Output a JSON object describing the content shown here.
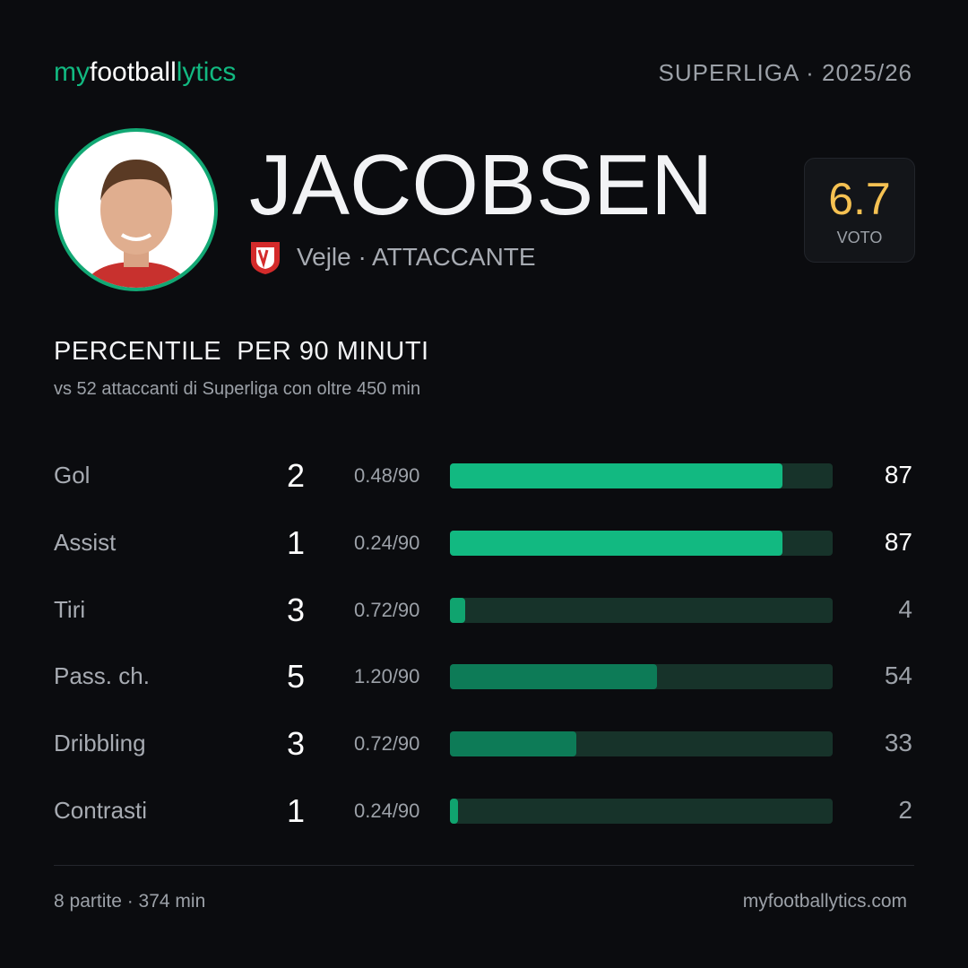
{
  "header": {
    "brand": [
      "my",
      "football",
      "lytics"
    ],
    "competition": "SUPERLIGA · 2025/26"
  },
  "player": {
    "name": "JACOBSEN",
    "club": "Vejle · ATTACCANTE",
    "rating": 6.7,
    "rating_label": "VOTO"
  },
  "chart_data": {
    "type": "bar",
    "title": "PERCENTILE  PER 90 MINUTI",
    "subtitle": "vs 52 attaccanti di Superliga con oltre 450 min",
    "categories": [
      "Gol",
      "Assist",
      "Tiri",
      "Pass. ch.",
      "Dribbling",
      "Contrasti"
    ],
    "totals": [
      2,
      1,
      3,
      5,
      3,
      1
    ],
    "per90": [
      "0.48/90",
      "0.24/90",
      "0.72/90",
      "1.20/90",
      "0.72/90",
      "0.24/90"
    ],
    "values": [
      87,
      87,
      4,
      54,
      33,
      2
    ],
    "colors": [
      "#12b981",
      "#12b981",
      "#10a46f",
      "#0d7b57",
      "#0d7b57",
      "#10a46f"
    ],
    "value_label_colors": [
      "#ffffff",
      "#ffffff",
      "#9ca1a8",
      "#9ca1a8",
      "#9ca1a8",
      "#9ca1a8"
    ],
    "xlim": [
      0,
      100
    ]
  },
  "footer": {
    "left": "8 partite · 374 min",
    "right": "myfootballytics.com"
  }
}
